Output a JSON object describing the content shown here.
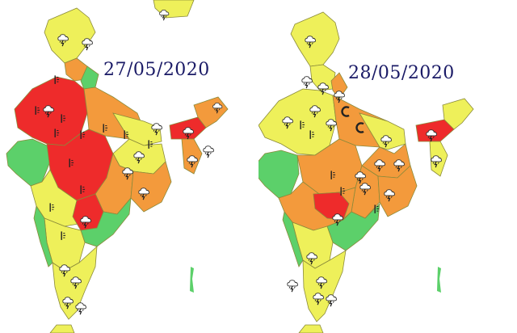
{
  "maps": [
    {
      "date": "27/05/2020",
      "colors": {
        "red": "#ee2b2b",
        "orange": "#f39a3c",
        "yellow": "#eef05a",
        "green": "#5cd06a",
        "border": "#8a8a3a"
      },
      "icons": [
        "thunderstorm-icon",
        "heatwave-icon"
      ]
    },
    {
      "date": "28/05/2020",
      "colors": {
        "red": "#ee2b2b",
        "orange": "#f39a3c",
        "yellow": "#eef05a",
        "green": "#5cd06a",
        "border": "#8a8a3a"
      },
      "icons": [
        "thunderstorm-icon",
        "heatwave-icon",
        "dust-storm-icon"
      ]
    }
  ]
}
